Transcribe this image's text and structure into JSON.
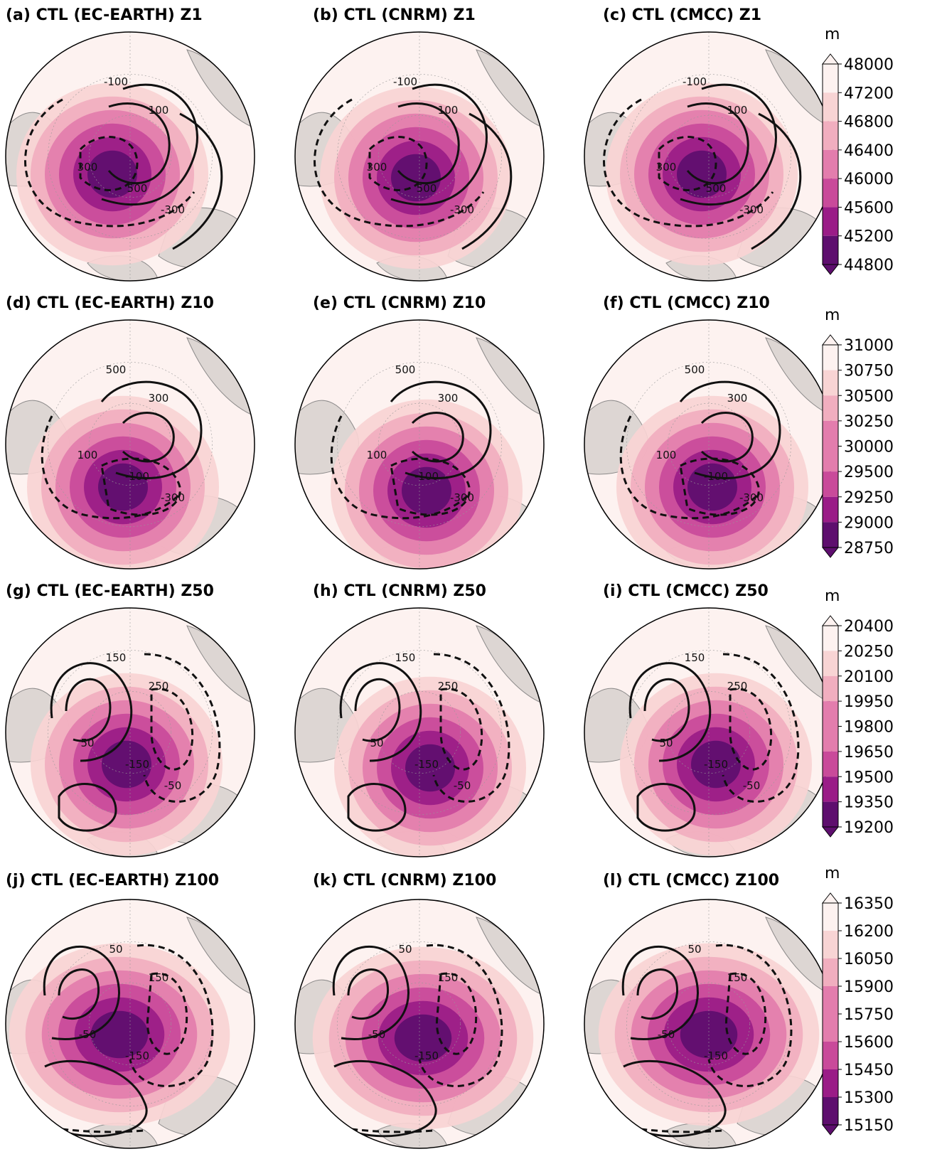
{
  "chart_data": [
    {
      "type": "heatmap",
      "rows": [
        {
          "level": "Z1",
          "panels": [
            {
              "title": "(a) CTL (EC-EARTH) Z1"
            },
            {
              "title": "(b) CTL (CNRM) Z1"
            },
            {
              "title": "(c) CTL (CMCC) Z1"
            }
          ],
          "colorbar": {
            "unit": "m",
            "ticks": [
              48000,
              47200,
              46800,
              46400,
              46000,
              45600,
              45200,
              44800
            ]
          },
          "contour_labels": [
            "-100",
            "100",
            "300",
            "500",
            "-300"
          ]
        },
        {
          "level": "Z10",
          "panels": [
            {
              "title": "(d) CTL (EC-EARTH) Z10"
            },
            {
              "title": "(e) CTL (CNRM) Z10"
            },
            {
              "title": "(f) CTL (CMCC) Z10"
            }
          ],
          "colorbar": {
            "unit": "m",
            "ticks": [
              31000,
              30750,
              30500,
              30250,
              30000,
              29500,
              29250,
              29000,
              28750
            ]
          },
          "contour_labels": [
            "500",
            "300",
            "100",
            "-100",
            "-300"
          ]
        },
        {
          "level": "Z50",
          "panels": [
            {
              "title": "(g) CTL (EC-EARTH) Z50"
            },
            {
              "title": "(h) CTL (CNRM) Z50"
            },
            {
              "title": "(i) CTL (CMCC) Z50"
            }
          ],
          "colorbar": {
            "unit": "m",
            "ticks": [
              20400,
              20250,
              20100,
              19950,
              19800,
              19650,
              19500,
              19350,
              19200
            ]
          },
          "contour_labels": [
            "150",
            "250",
            "50",
            "-150",
            "-50"
          ]
        },
        {
          "level": "Z100",
          "panels": [
            {
              "title": "(j) CTL (EC-EARTH) Z100"
            },
            {
              "title": "(k) CTL (CNRM) Z100"
            },
            {
              "title": "(l) CTL (CMCC) Z100"
            }
          ],
          "colorbar": {
            "unit": "m",
            "ticks": [
              16350,
              16200,
              16050,
              15900,
              15750,
              15600,
              15450,
              15300,
              15150
            ]
          },
          "contour_labels": [
            "50",
            "150",
            "-50",
            "-150"
          ]
        }
      ]
    }
  ],
  "colors": {
    "fill_levels": [
      "#fdf2f0",
      "#f8d4d4",
      "#f1aebf",
      "#e37dad",
      "#c94a9a",
      "#9a1c87",
      "#5e0e6e"
    ],
    "land": "#d8d2ce",
    "contour": "#111111",
    "coast": "#7a7a7a"
  }
}
